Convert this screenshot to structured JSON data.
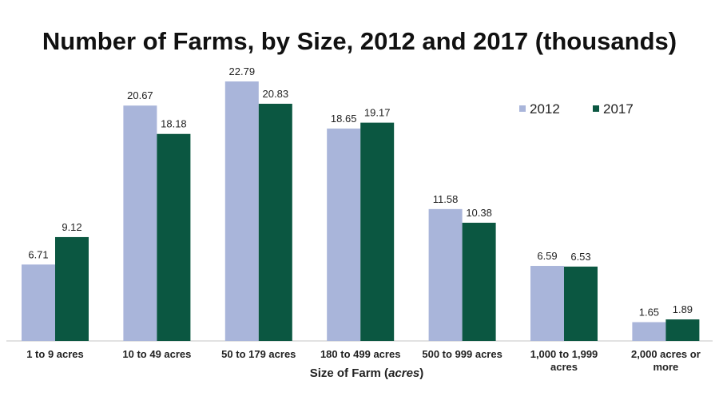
{
  "chart_data": {
    "type": "bar",
    "title": "Number of Farms, by Size, 2012 and 2017 (thousands)",
    "xlabel_parts": [
      "Size of Farm (",
      "acres",
      ")"
    ],
    "ylabel": "",
    "categories": [
      "1 to 9 acres",
      "10 to 49 acres",
      "50 to 179 acres",
      "180 to 499 acres",
      "500 to 999 acres",
      "1,000 to 1,999 acres",
      "2,000 acres or more"
    ],
    "series": [
      {
        "name": "2012",
        "color": "#a9b5da",
        "values": [
          6.71,
          20.67,
          22.79,
          18.65,
          11.58,
          6.59,
          1.65
        ]
      },
      {
        "name": "2017",
        "color": "#0b5741",
        "values": [
          9.12,
          18.18,
          20.83,
          19.17,
          10.38,
          6.53,
          1.89
        ]
      }
    ],
    "data_labels": true,
    "ylim": [
      0,
      22.79
    ],
    "grid": false,
    "legend": "top-right"
  }
}
